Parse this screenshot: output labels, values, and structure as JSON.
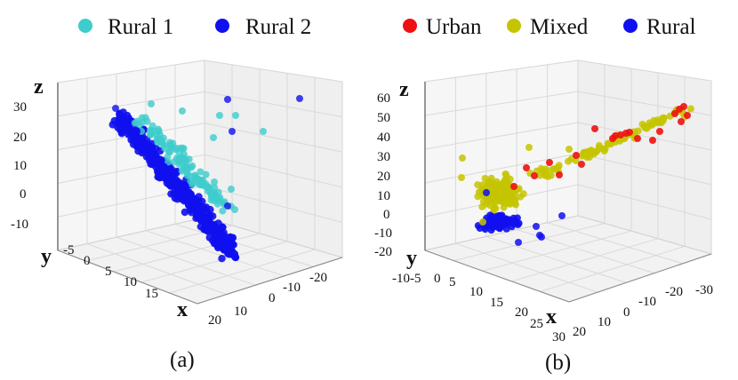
{
  "chart_data": [
    {
      "type": "scatter3d",
      "caption": "(a)",
      "legend": [
        {
          "label": "Rural 1",
          "color": "#3fcccc"
        },
        {
          "label": "Rural 2",
          "color": "#1010ee"
        }
      ],
      "axes": {
        "x": {
          "label": "x",
          "ticks": [
            "20",
            "15",
            "10",
            "5",
            "0",
            "-5"
          ],
          "range": [
            -8,
            20
          ]
        },
        "y": {
          "label": "y",
          "ticks": [
            "20",
            "10",
            "0",
            "-10",
            "-20"
          ],
          "range": [
            -25,
            22
          ]
        },
        "z": {
          "label": "z",
          "ticks": [
            "30",
            "20",
            "10",
            "0",
            "-10"
          ],
          "range": [
            -15,
            33
          ]
        }
      },
      "series": [
        {
          "name": "Rural 1",
          "color": "#3fcccc",
          "description": "dense band along the diagonal, upper-right part of cloud plus sparse points near z 15-25"
        },
        {
          "name": "Rural 2",
          "color": "#1010ee",
          "description": "dense band along the diagonal from upper-left (x≈-7, z≈28) down to lower-right (x≈18, z≈-15)"
        }
      ]
    },
    {
      "type": "scatter3d",
      "caption": "(b)",
      "legend": [
        {
          "label": "Urban",
          "color": "#ee1111"
        },
        {
          "label": "Mixed",
          "color": "#c4c400"
        },
        {
          "label": "Rural",
          "color": "#1010ee"
        }
      ],
      "axes": {
        "x": {
          "label": "x",
          "ticks": [
            "30",
            "25",
            "20",
            "15",
            "10",
            "5",
            "0",
            "-5",
            "-10"
          ],
          "range": [
            -12,
            30
          ]
        },
        "y": {
          "label": "y",
          "ticks": [
            "20",
            "10",
            "0",
            "-10",
            "-20",
            "-30"
          ],
          "range": [
            -32,
            22
          ]
        },
        "z": {
          "label": "z",
          "ticks": [
            "60",
            "50",
            "40",
            "30",
            "20",
            "10",
            "0",
            "-10",
            "-20"
          ],
          "range": [
            -22,
            63
          ]
        }
      },
      "series": [
        {
          "name": "Urban",
          "color": "#ee1111",
          "description": "upper-right end of the cloud, z ≈ 20-52"
        },
        {
          "name": "Mixed",
          "color": "#c4c400",
          "description": "long band from lower-left cluster up to the upper right, z ≈ -10-55"
        },
        {
          "name": "Rural",
          "color": "#1010ee",
          "description": "compact cluster at lower-left, z ≈ -15-10"
        }
      ]
    }
  ]
}
